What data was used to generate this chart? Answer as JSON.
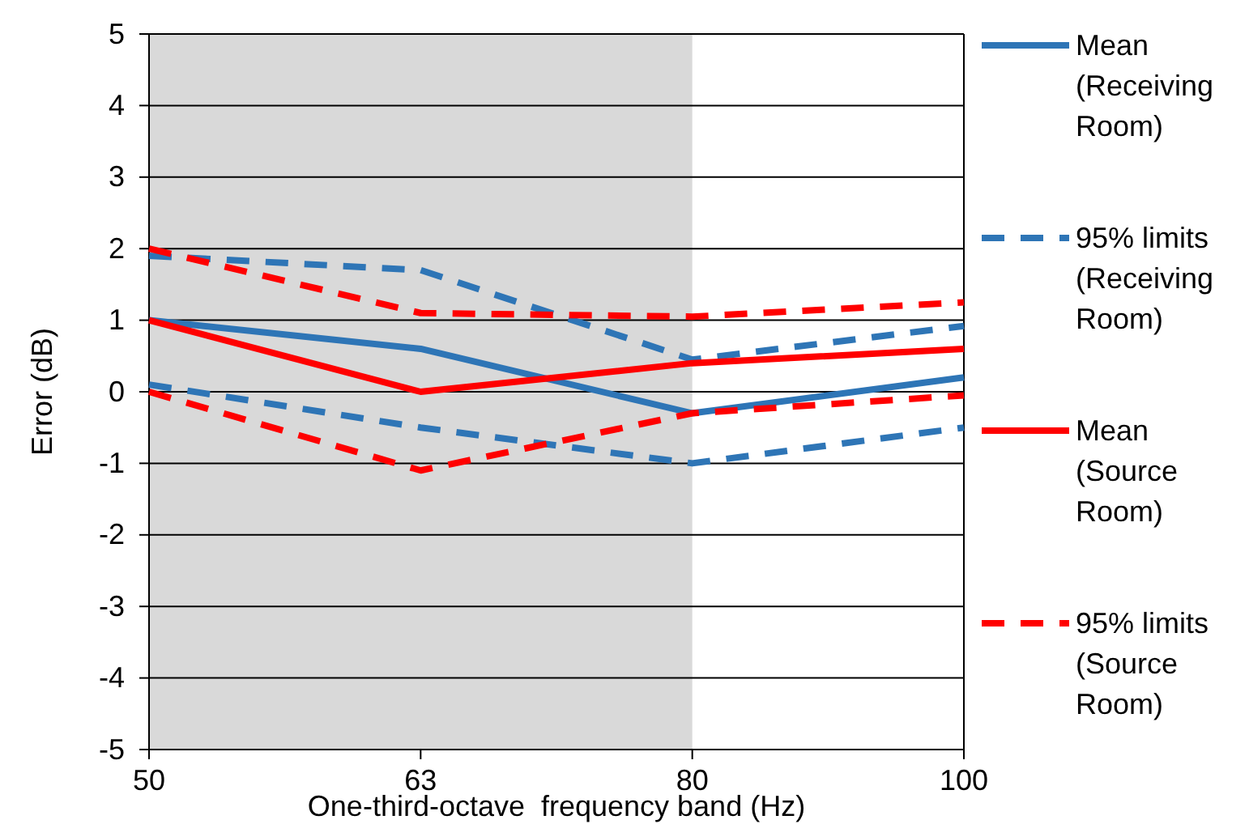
{
  "chart_data": {
    "type": "line",
    "xlabel": "One-third-octave  frequency band (Hz)",
    "ylabel": "Error (dB)",
    "categories": [
      "50",
      "63",
      "80",
      "100"
    ],
    "ylim": [
      -5,
      5
    ],
    "yticks": [
      -5,
      -4,
      -3,
      -2,
      -1,
      0,
      1,
      2,
      3,
      4,
      5
    ],
    "grid": "y",
    "legend": "right",
    "bands": [
      {
        "axis": "x",
        "from": "50",
        "to": "80",
        "color": "#d9d9d9"
      }
    ],
    "series": [
      {
        "name": "Mean (Receiving Room)",
        "color": "#2e75b6",
        "line_style": "solid",
        "values": [
          1.0,
          0.6,
          -0.3,
          0.2
        ]
      },
      {
        "name": "95% limits (Receiving Room)",
        "color": "#2e75b6",
        "line_style": "dashed",
        "values": [
          1.9,
          1.7,
          0.45,
          0.92
        ]
      },
      {
        "color": "#2e75b6",
        "line_style": "dashed",
        "values": [
          0.1,
          -0.5,
          -1.0,
          -0.5
        ]
      },
      {
        "name": "Mean (Source Room)",
        "color": "#ff0000",
        "line_style": "solid",
        "values": [
          1.0,
          0.0,
          0.4,
          0.6
        ]
      },
      {
        "name": "95% limits (Source Room)",
        "color": "#ff0000",
        "line_style": "dashed",
        "values": [
          2.0,
          1.1,
          1.05,
          1.25
        ]
      },
      {
        "color": "#ff0000",
        "line_style": "dashed",
        "values": [
          0.0,
          -1.1,
          -0.3,
          -0.05
        ]
      }
    ]
  }
}
